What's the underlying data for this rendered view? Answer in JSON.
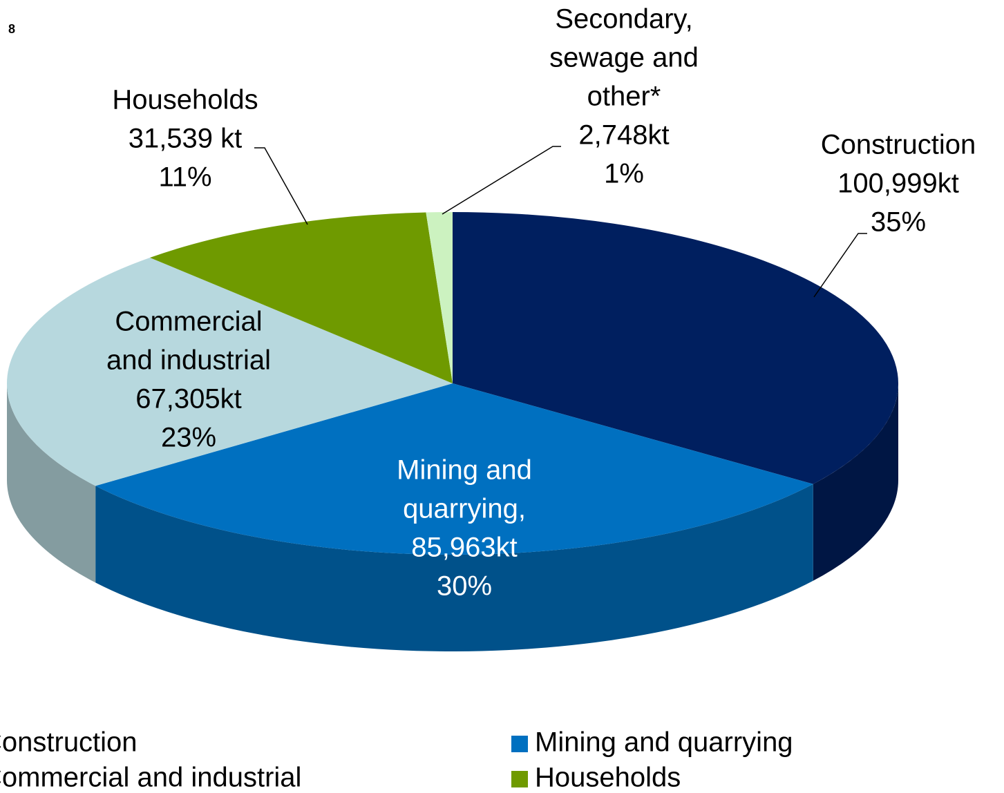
{
  "corner_text": "8",
  "chart_data": {
    "type": "pie3d",
    "categories": [
      "Construction",
      "Mining and quarrying",
      "Commercial and industrial",
      "Households",
      "Secondary, sewage and other*"
    ],
    "label_names": [
      [
        "Construction"
      ],
      [
        "Mining and",
        "quarrying,"
      ],
      [
        "Commercial",
        "and industrial"
      ],
      [
        "Households"
      ],
      [
        "Secondary,",
        "sewage and",
        "other*"
      ]
    ],
    "values": [
      100999,
      85963,
      67305,
      31539,
      2748
    ],
    "value_labels": [
      "100,999kt",
      "85,963kt",
      "67,305kt",
      "31,539 kt",
      "2,748kt"
    ],
    "percentages": [
      35,
      30,
      23,
      11,
      1
    ],
    "percentage_labels": [
      "35%",
      "30%",
      "23%",
      "11%",
      "1%"
    ],
    "colors": [
      "#001f5f",
      "#0070c0",
      "#b7d8de",
      "#6f9a00",
      "#ccf2c0"
    ],
    "legend": "bottom"
  }
}
